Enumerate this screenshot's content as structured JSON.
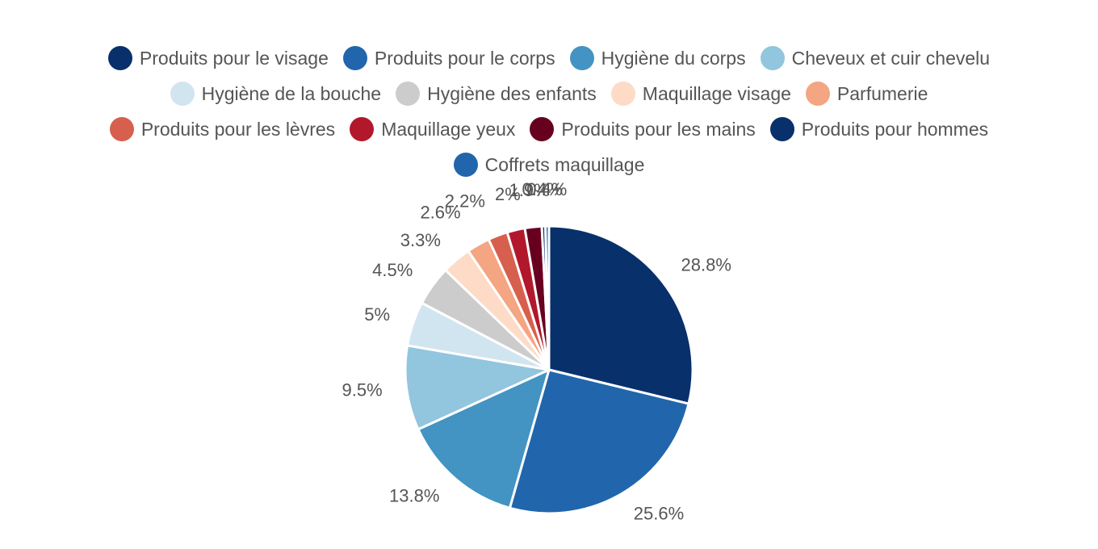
{
  "chart_data": {
    "type": "pie",
    "labels": [
      "Produits pour le visage",
      "Produits pour le corps",
      "Hygiène du corps",
      "Cheveux et cuir chevelu",
      "Hygiène de la bouche",
      "Hygiène des enfants",
      "Maquillage visage",
      "Parfumerie",
      "Produits pour les lèvres",
      "Maquillage yeux",
      "Produits pour les mains",
      "Produits pour hommes",
      "Coffrets maquillage"
    ],
    "values": [
      28.8,
      25.6,
      13.8,
      9.5,
      5.0,
      4.5,
      3.3,
      2.6,
      2.2,
      2.0,
      1.9,
      0.4,
      0.4
    ],
    "value_labels": [
      "28.8%",
      "25.6%",
      "13.8%",
      "9.5%",
      "5%",
      "4.5%",
      "3.3%",
      "2.6%",
      "2.2%",
      "2%",
      "1.9%",
      "0.4%",
      "0.4%"
    ],
    "colors": [
      "#08306b",
      "#2166ac",
      "#4393c3",
      "#92c5de",
      "#d1e5f0",
      "#cccccc",
      "#fddbc7",
      "#f4a582",
      "#d6604d",
      "#b2182b",
      "#67001f",
      "#08306b",
      "#2166ac"
    ],
    "legend_position": "top",
    "slice_border_color": "#ffffff"
  }
}
